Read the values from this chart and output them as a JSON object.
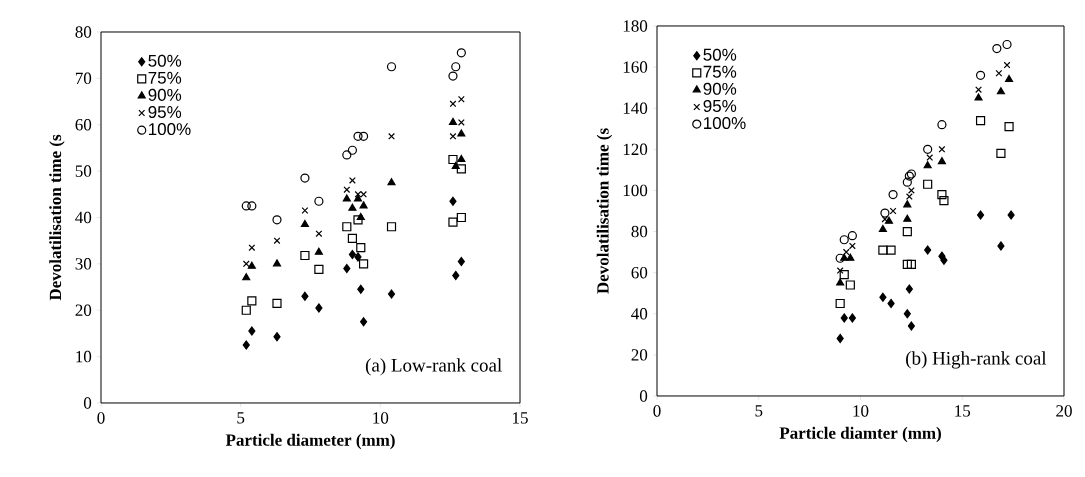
{
  "chart_data": [
    {
      "type": "scatter",
      "xlabel": "Particle diameter (mm)",
      "ylabel": "Devolatilisation time (s",
      "annotations": [
        "(a) Low-rank coal"
      ],
      "xlim": [
        0,
        15
      ],
      "ylim": [
        0,
        80
      ],
      "xticks": [
        0,
        5,
        10,
        15
      ],
      "yticks": [
        0,
        10,
        20,
        30,
        40,
        50,
        60,
        70,
        80
      ],
      "legend": "top left",
      "grid": false,
      "series": [
        {
          "name": "50%",
          "color": "#000000",
          "marker": "diamond",
          "x": [
            5.2,
            5.4,
            6.3,
            7.3,
            7.8,
            8.8,
            9.0,
            9.2,
            9.3,
            9.4,
            10.4,
            12.6,
            12.7,
            12.9
          ],
          "values": [
            12.5,
            15.5,
            14.3,
            23,
            20.5,
            29,
            32,
            31.5,
            24.5,
            17.5,
            23.5,
            43.5,
            27.5,
            30.5
          ]
        },
        {
          "name": "75%",
          "color": "#000000",
          "marker": "square",
          "x": [
            5.2,
            5.4,
            6.3,
            7.3,
            7.8,
            8.8,
            9.0,
            9.2,
            9.3,
            9.4,
            10.4,
            12.6,
            12.6,
            12.9,
            12.9
          ],
          "values": [
            20,
            22,
            21.5,
            31.8,
            28.8,
            38,
            35.5,
            39.5,
            33.5,
            30,
            38,
            52.5,
            39,
            40,
            50.5
          ]
        },
        {
          "name": "90%",
          "color": "#000000",
          "marker": "triangle",
          "x": [
            5.2,
            5.4,
            6.3,
            7.3,
            7.8,
            8.8,
            9.0,
            9.2,
            9.3,
            9.4,
            10.4,
            12.6,
            12.7,
            12.9,
            12.9
          ],
          "values": [
            27,
            29.5,
            30,
            38.5,
            32.5,
            44,
            42,
            44,
            40,
            42.5,
            47.5,
            60.5,
            51,
            58,
            52.5
          ]
        },
        {
          "name": "95%",
          "color": "#000000",
          "marker": "cross",
          "x": [
            5.2,
            5.4,
            6.3,
            7.3,
            7.8,
            8.8,
            9.0,
            9.2,
            9.4,
            10.4,
            12.6,
            12.6,
            12.9,
            12.9
          ],
          "values": [
            30,
            33.5,
            35,
            41.5,
            36.5,
            46,
            48,
            45,
            45,
            57.5,
            64.5,
            57.5,
            65.5,
            60.5
          ]
        },
        {
          "name": "100%",
          "color": "#000000",
          "marker": "circle",
          "x": [
            5.2,
            5.4,
            6.3,
            7.3,
            7.8,
            8.8,
            9.0,
            9.2,
            9.4,
            10.4,
            12.6,
            12.7,
            12.9
          ],
          "values": [
            42.5,
            42.5,
            39.5,
            48.5,
            43.5,
            53.5,
            54.5,
            57.5,
            57.5,
            72.5,
            70.5,
            72.5,
            75.5
          ]
        }
      ]
    },
    {
      "type": "scatter",
      "xlabel": "Particle diamter (mm)",
      "ylabel": "Devolatilisation time (s",
      "annotations": [
        "(b) High-rank coal"
      ],
      "xlim": [
        0,
        20
      ],
      "ylim": [
        0,
        180
      ],
      "xticks": [
        0,
        5,
        10,
        15,
        20
      ],
      "yticks": [
        0,
        20,
        40,
        60,
        80,
        100,
        120,
        140,
        160,
        180
      ],
      "legend": "top left",
      "grid": false,
      "series": [
        {
          "name": "50%",
          "color": "#000000",
          "marker": "diamond",
          "x": [
            9.0,
            9.2,
            9.6,
            11.1,
            11.5,
            12.3,
            12.4,
            12.5,
            13.3,
            14.0,
            14.1,
            15.9,
            16.9,
            17.4
          ],
          "values": [
            28,
            38,
            38,
            48,
            45,
            40,
            52,
            34,
            71,
            68,
            66,
            88,
            73,
            88
          ]
        },
        {
          "name": "75%",
          "color": "#000000",
          "marker": "square",
          "x": [
            9.0,
            9.2,
            9.5,
            11.1,
            11.5,
            12.3,
            12.3,
            12.5,
            13.3,
            14.0,
            14.1,
            15.9,
            16.9,
            17.3
          ],
          "values": [
            45,
            59,
            54,
            71,
            71,
            80,
            64,
            64,
            103,
            98,
            95,
            134,
            118,
            131
          ]
        },
        {
          "name": "90%",
          "color": "#000000",
          "marker": "triangle",
          "x": [
            9.0,
            9.2,
            9.5,
            11.1,
            11.4,
            12.3,
            12.3,
            13.3,
            14.0,
            15.8,
            16.9,
            17.3
          ],
          "values": [
            55,
            67,
            67,
            81,
            85,
            86,
            93,
            112,
            114,
            145,
            148,
            154
          ]
        },
        {
          "name": "95%",
          "color": "#000000",
          "marker": "cross",
          "x": [
            9.0,
            9.3,
            9.6,
            11.2,
            11.6,
            12.4,
            12.5,
            13.4,
            14.0,
            15.8,
            16.8,
            17.2
          ],
          "values": [
            61,
            70,
            73,
            86,
            90,
            97,
            100,
            116,
            120,
            149,
            157,
            161
          ]
        },
        {
          "name": "100%",
          "color": "#000000",
          "marker": "circle",
          "x": [
            9.0,
            9.2,
            9.6,
            11.2,
            11.6,
            12.3,
            12.4,
            12.5,
            13.3,
            14.0,
            15.9,
            16.7,
            17.2
          ],
          "values": [
            67,
            76,
            78,
            89,
            98,
            104,
            107,
            108,
            120,
            132,
            156,
            169,
            171
          ]
        }
      ]
    }
  ]
}
